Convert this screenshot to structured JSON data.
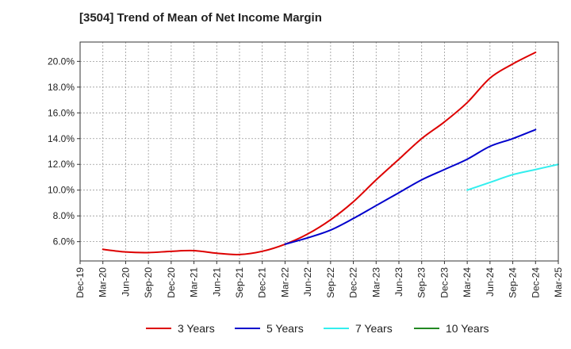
{
  "chart_data": {
    "type": "line",
    "title": "[3504]  Trend of Mean of Net Income Margin",
    "xlabel": "",
    "ylabel": "",
    "x": [
      "Dec-19",
      "Mar-20",
      "Jun-20",
      "Sep-20",
      "Dec-20",
      "Mar-21",
      "Jun-21",
      "Sep-21",
      "Dec-21",
      "Mar-22",
      "Jun-22",
      "Sep-22",
      "Dec-22",
      "Mar-23",
      "Jun-23",
      "Sep-23",
      "Dec-23",
      "Mar-24",
      "Jun-24",
      "Sep-24",
      "Dec-24",
      "Mar-25"
    ],
    "ylim": [
      4.5,
      21.5
    ],
    "yticks": [
      6.0,
      8.0,
      10.0,
      12.0,
      14.0,
      16.0,
      18.0,
      20.0
    ],
    "ytick_labels": [
      "6.0%",
      "8.0%",
      "10.0%",
      "12.0%",
      "14.0%",
      "16.0%",
      "18.0%",
      "20.0%"
    ],
    "grid": true,
    "legend_position": "bottom",
    "series": [
      {
        "name": "3 Years",
        "color": "#dd0000",
        "values": [
          null,
          5.4,
          5.2,
          5.15,
          5.25,
          5.3,
          5.1,
          5.0,
          5.25,
          5.8,
          6.6,
          7.7,
          9.1,
          10.8,
          12.4,
          14.0,
          15.3,
          16.8,
          18.7,
          19.8,
          20.7,
          null
        ]
      },
      {
        "name": "5 Years",
        "color": "#0000cc",
        "values": [
          null,
          null,
          null,
          null,
          null,
          null,
          null,
          null,
          null,
          5.8,
          6.3,
          6.9,
          7.8,
          8.8,
          9.8,
          10.8,
          11.6,
          12.4,
          13.4,
          14.0,
          14.7,
          null
        ]
      },
      {
        "name": "7 Years",
        "color": "#33eeee",
        "values": [
          null,
          null,
          null,
          null,
          null,
          null,
          null,
          null,
          null,
          null,
          null,
          null,
          null,
          null,
          null,
          null,
          null,
          10.0,
          10.6,
          11.2,
          11.6,
          12.0
        ]
      },
      {
        "name": "10 Years",
        "color": "#228822",
        "values": [
          null,
          null,
          null,
          null,
          null,
          null,
          null,
          null,
          null,
          null,
          null,
          null,
          null,
          null,
          null,
          null,
          null,
          null,
          null,
          null,
          null,
          null
        ]
      }
    ]
  }
}
